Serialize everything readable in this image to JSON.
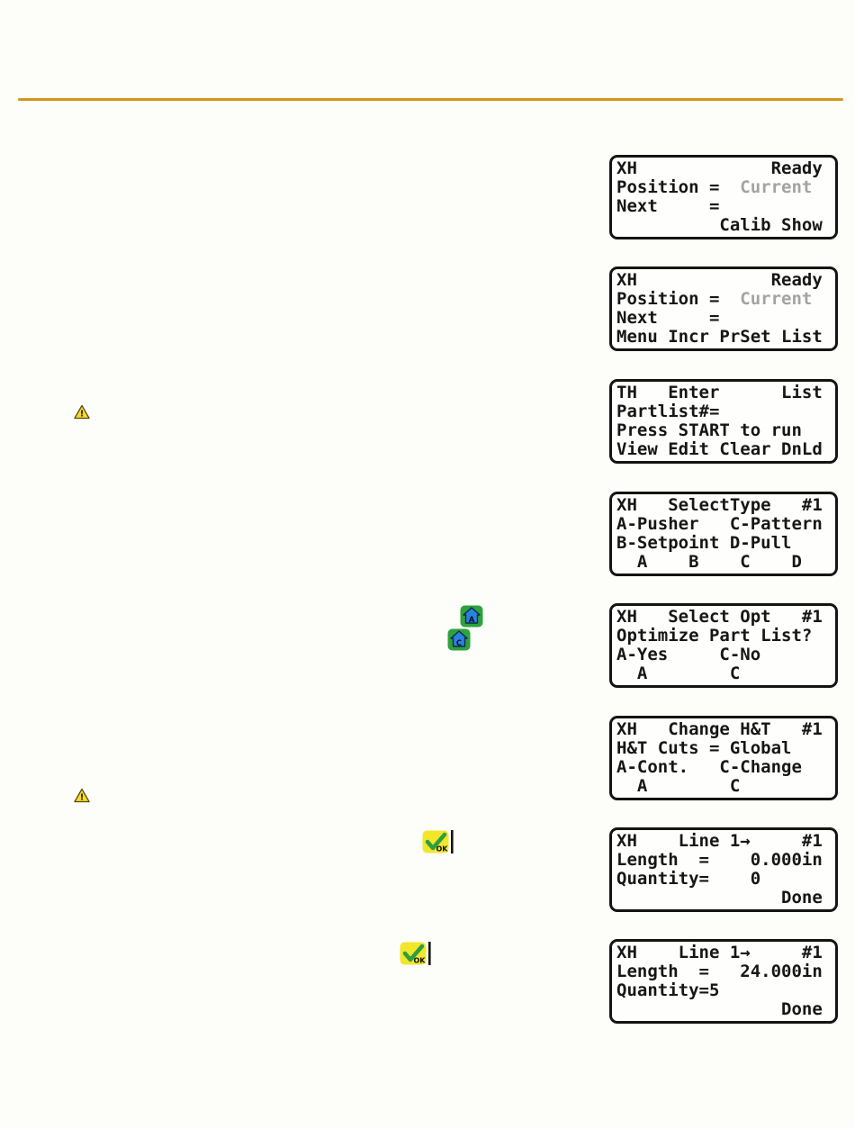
{
  "page": {
    "background_color": "#fdfdf9",
    "divider_color": "#d4951e"
  },
  "icons": {
    "warning": {
      "glyph": "!",
      "fill": "#ffd91e"
    },
    "home_a": {
      "letter": "A",
      "button_color": "#2ea23c",
      "house_color": "#2b81e0"
    },
    "home_c": {
      "letter": "C",
      "button_color": "#2ea23c",
      "house_color": "#2b81e0"
    },
    "ok": {
      "label": "OK",
      "button_color": "#f2e62b",
      "check_color": "#2f9e3f"
    }
  },
  "lcds": [
    {
      "id": "ready-calib-show",
      "lines": [
        [
          {
            "text": "XH             Ready"
          }
        ],
        [
          {
            "text": "Position =  "
          },
          {
            "text": "Current",
            "muted": true
          }
        ],
        [
          {
            "text": "Next     ="
          }
        ],
        [
          {
            "text": "          Calib Show"
          }
        ]
      ]
    },
    {
      "id": "ready-menu",
      "lines": [
        [
          {
            "text": "XH             Ready"
          }
        ],
        [
          {
            "text": "Position =  "
          },
          {
            "text": "Current",
            "muted": true
          }
        ],
        [
          {
            "text": "Next     ="
          }
        ],
        [
          {
            "text": "Menu Incr PrSet List"
          }
        ]
      ]
    },
    {
      "id": "enter-partlist",
      "lines": [
        [
          {
            "text": "TH   Enter      List"
          }
        ],
        [
          {
            "text": "Partlist#="
          }
        ],
        [
          {
            "text": "Press START to run"
          }
        ],
        [
          {
            "text": "View Edit Clear DnLd"
          }
        ]
      ]
    },
    {
      "id": "select-type",
      "lines": [
        [
          {
            "text": "XH   SelectType   #1"
          }
        ],
        [
          {
            "text": "A-Pusher   C-Pattern"
          }
        ],
        [
          {
            "text": "B-Setpoint D-Pull"
          }
        ],
        [
          {
            "text": "  A    B    C    D"
          }
        ]
      ]
    },
    {
      "id": "select-opt",
      "lines": [
        [
          {
            "text": "XH   Select Opt   #1"
          }
        ],
        [
          {
            "text": "Optimize Part List?"
          }
        ],
        [
          {
            "text": "A-Yes     C-No"
          }
        ],
        [
          {
            "text": "  A        C"
          }
        ]
      ]
    },
    {
      "id": "change-ht",
      "lines": [
        [
          {
            "text": "XH   Change H&T   #1"
          }
        ],
        [
          {
            "text": "H&T Cuts = Global"
          }
        ],
        [
          {
            "text": "A-Cont.   C-Change"
          }
        ],
        [
          {
            "text": "  A        C"
          }
        ]
      ]
    },
    {
      "id": "line1-empty",
      "lines": [
        [
          {
            "text": "XH    Line 1→     #1"
          }
        ],
        [
          {
            "text": "Length  =    0.000in"
          }
        ],
        [
          {
            "text": "Quantity=    0"
          }
        ],
        [
          {
            "text": "                Done"
          }
        ]
      ]
    },
    {
      "id": "line1-filled",
      "lines": [
        [
          {
            "text": "XH    Line 1→     #1"
          }
        ],
        [
          {
            "text": "Length  =   24.000in"
          }
        ],
        [
          {
            "text": "Quantity=5"
          }
        ],
        [
          {
            "text": "                Done"
          }
        ]
      ]
    }
  ]
}
